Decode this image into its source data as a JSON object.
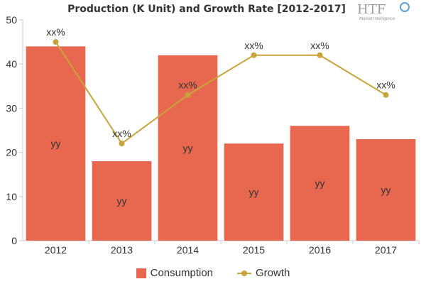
{
  "chart_data": {
    "type": "bar",
    "title": "Production (K Unit) and Growth Rate [2012-2017]",
    "categories": [
      "2012",
      "2013",
      "2014",
      "2015",
      "2016",
      "2017"
    ],
    "ylim": [
      0,
      50
    ],
    "yticks": [
      0,
      10,
      20,
      30,
      40,
      50
    ],
    "grid": false,
    "legend_position": "bottom",
    "series": [
      {
        "name": "Consumption",
        "type": "bar",
        "color": "#e8684f",
        "values": [
          44,
          18,
          42,
          22,
          26,
          23
        ],
        "data_labels": [
          "yy",
          "yy",
          "yy",
          "yy",
          "yy",
          "yy"
        ]
      },
      {
        "name": "Growth",
        "type": "line",
        "color": "#c9a43b",
        "values": [
          45,
          22,
          33,
          42,
          42,
          33
        ],
        "data_labels": [
          "xx%",
          "xx%",
          "xx%",
          "xx%",
          "xx%",
          "xx%"
        ]
      }
    ]
  },
  "logo": {
    "text": "HTF",
    "subtext": "Market Intelligence"
  }
}
